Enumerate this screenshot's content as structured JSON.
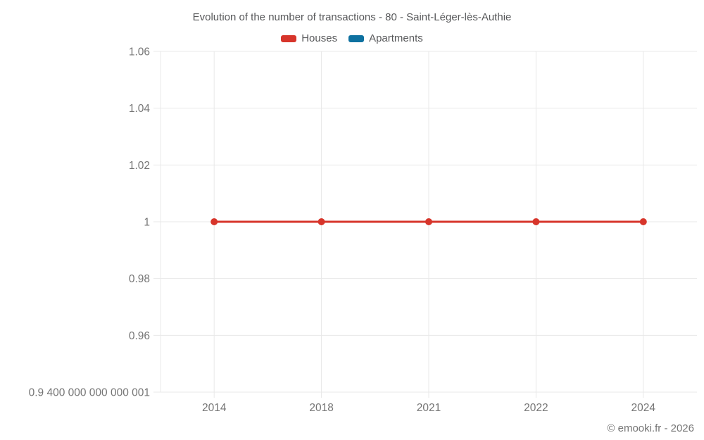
{
  "header": {
    "title": "Evolution of the number of transactions - 80 - Saint-Léger-lès-Authie"
  },
  "legend": {
    "items": [
      {
        "label": "Houses",
        "color": "#d7352b"
      },
      {
        "label": "Apartments",
        "color": "#0e71a0"
      }
    ]
  },
  "footer": {
    "credit": "© emooki.fr - 2026"
  },
  "chart_data": {
    "type": "line",
    "title": "Evolution of the number of transactions - 80 - Saint-Léger-lès-Authie",
    "categories": [
      "2014",
      "2018",
      "2021",
      "2022",
      "2024"
    ],
    "series": [
      {
        "name": "Houses",
        "color": "#d7352b",
        "values": [
          1,
          1,
          1,
          1,
          1
        ]
      },
      {
        "name": "Apartments",
        "color": "#0e71a0",
        "values": [
          null,
          null,
          null,
          null,
          null
        ]
      }
    ],
    "xlabel": "",
    "ylabel": "",
    "ylim": [
      0.94,
      1.06
    ],
    "yticks": [
      {
        "value": 1.06,
        "label": "1.06"
      },
      {
        "value": 1.04,
        "label": "1.04"
      },
      {
        "value": 1.02,
        "label": "1.02"
      },
      {
        "value": 1.0,
        "label": "1"
      },
      {
        "value": 0.98,
        "label": "0.98"
      },
      {
        "value": 0.96,
        "label": "0.96"
      },
      {
        "value": 0.94,
        "label": "0.9 400 000 000 000 001"
      }
    ],
    "grid": true,
    "grid_color": "#e8e8e8",
    "tick_color": "#757575",
    "legend_position": "top"
  }
}
